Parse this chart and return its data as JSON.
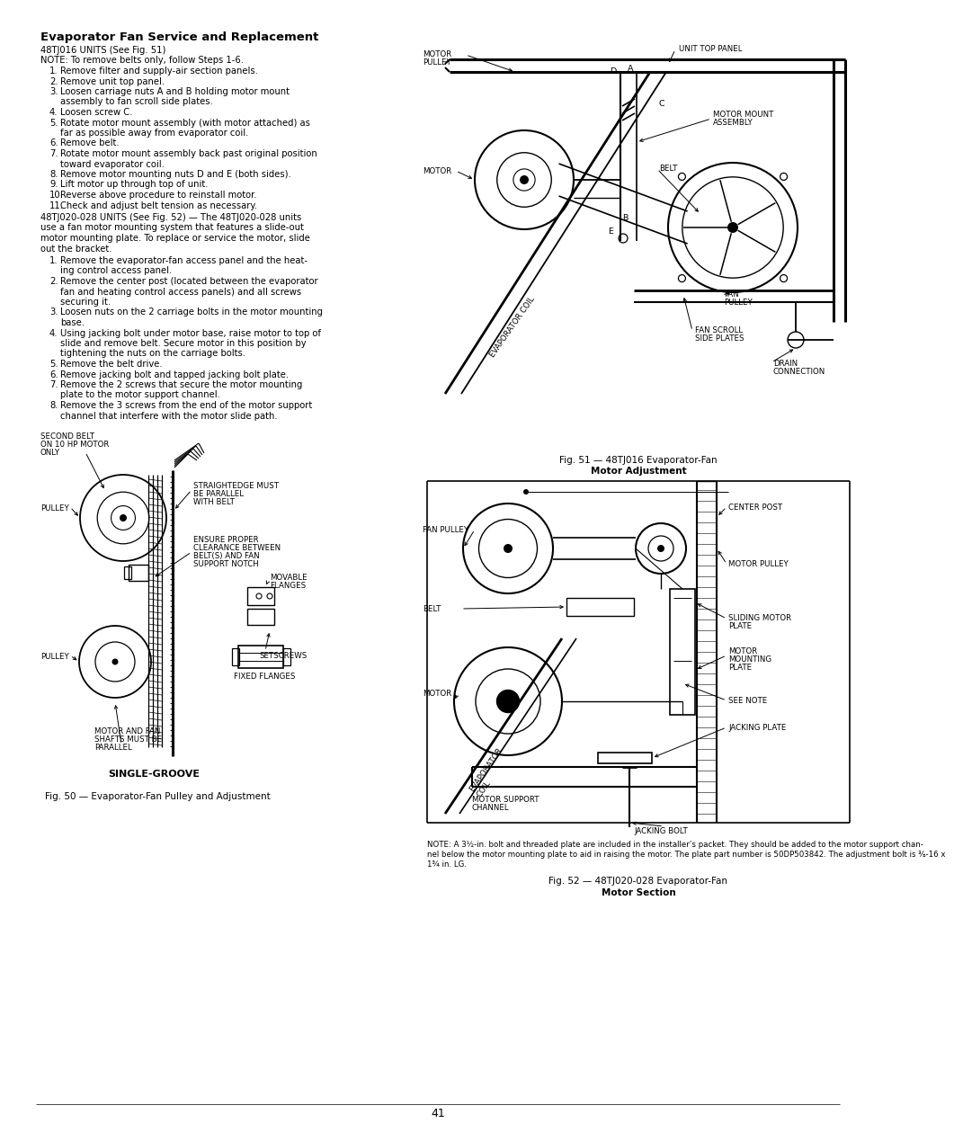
{
  "page_bg": "#ffffff",
  "page_num": "41",
  "title": "Evaporator Fan Service and Replacement",
  "sub1": "48TJ016 UNITS (See Fig. 51)",
  "note1": "NOTE: To remove belts only, follow Steps 1-6.",
  "steps1": [
    [
      "Remove filter and supply-air section panels.",
      1
    ],
    [
      "Remove unit top panel.",
      1
    ],
    [
      "Loosen carriage nuts A and B holding motor mount",
      2
    ],
    [
      "assembly to fan scroll side plates.",
      0
    ],
    [
      "Loosen screw C.",
      1
    ],
    [
      "Rotate motor mount assembly (with motor attached) as",
      2
    ],
    [
      "far as possible away from evaporator coil.",
      0
    ],
    [
      "Remove belt.",
      1
    ],
    [
      "Rotate motor mount assembly back past original position",
      2
    ],
    [
      "toward evaporator coil.",
      0
    ],
    [
      "Remove motor mounting nuts D and E (both sides).",
      1
    ],
    [
      "Lift motor up through top of unit.",
      1
    ],
    [
      "Reverse above procedure to reinstall motor.",
      1
    ],
    [
      "Check and adjust belt tension as necessary.",
      1
    ]
  ],
  "sub2_head": "48TJ020-028 UNITS (See Fig. 52) — The 48TJ020-028 units",
  "sub2_body": [
    "use a fan motor mounting system that features a slide-out",
    "motor mounting plate. To replace or service the motor, slide",
    "out the bracket."
  ],
  "steps2": [
    [
      "Remove the evaporator-fan access panel and the heat-",
      2
    ],
    [
      "ing control access panel.",
      0
    ],
    [
      "Remove the center post (located between the evaporator",
      3
    ],
    [
      "fan and heating control access panels) and all screws",
      0
    ],
    [
      "securing it.",
      0
    ],
    [
      "Loosen nuts on the 2 carriage bolts in the motor mounting",
      2
    ],
    [
      "base.",
      0
    ],
    [
      "Using jacking bolt under motor base, raise motor to top of",
      3
    ],
    [
      "slide and remove belt. Secure motor in this position by",
      0
    ],
    [
      "tightening the nuts on the carriage bolts.",
      0
    ],
    [
      "Remove the belt drive.",
      1
    ],
    [
      "Remove jacking bolt and tapped jacking bolt plate.",
      1
    ],
    [
      "Remove the 2 screws that secure the motor mounting",
      2
    ],
    [
      "plate to the motor support channel.",
      0
    ],
    [
      "Remove the 3 screws from the end of the motor support",
      2
    ],
    [
      "channel that interfere with the motor slide path.",
      0
    ]
  ],
  "cap50": "Fig. 50 — Evaporator-Fan Pulley and Adjustment",
  "cap51a": "Fig. 51 — 48TJ016 Evaporator-Fan",
  "cap51b": "Motor Adjustment",
  "cap52a": "Fig. 52 — 48TJ020-028 Evaporator-Fan",
  "cap52b": "Motor Section",
  "note2": [
    "NOTE: A 3½-in. bolt and threaded plate are included in the installer’s packet. They should be added to the motor support chan-",
    "nel below the motor mounting plate to aid in raising the motor. The plate part number is 50DP503842. The adjustment bolt is ⅜-16 x",
    "1¾ in. LG."
  ],
  "lmargin": 35,
  "col_split": 462,
  "rmargin": 930,
  "fs_title": 9.5,
  "fs_body": 7.2,
  "fs_small": 6.2,
  "lh": 11.5
}
